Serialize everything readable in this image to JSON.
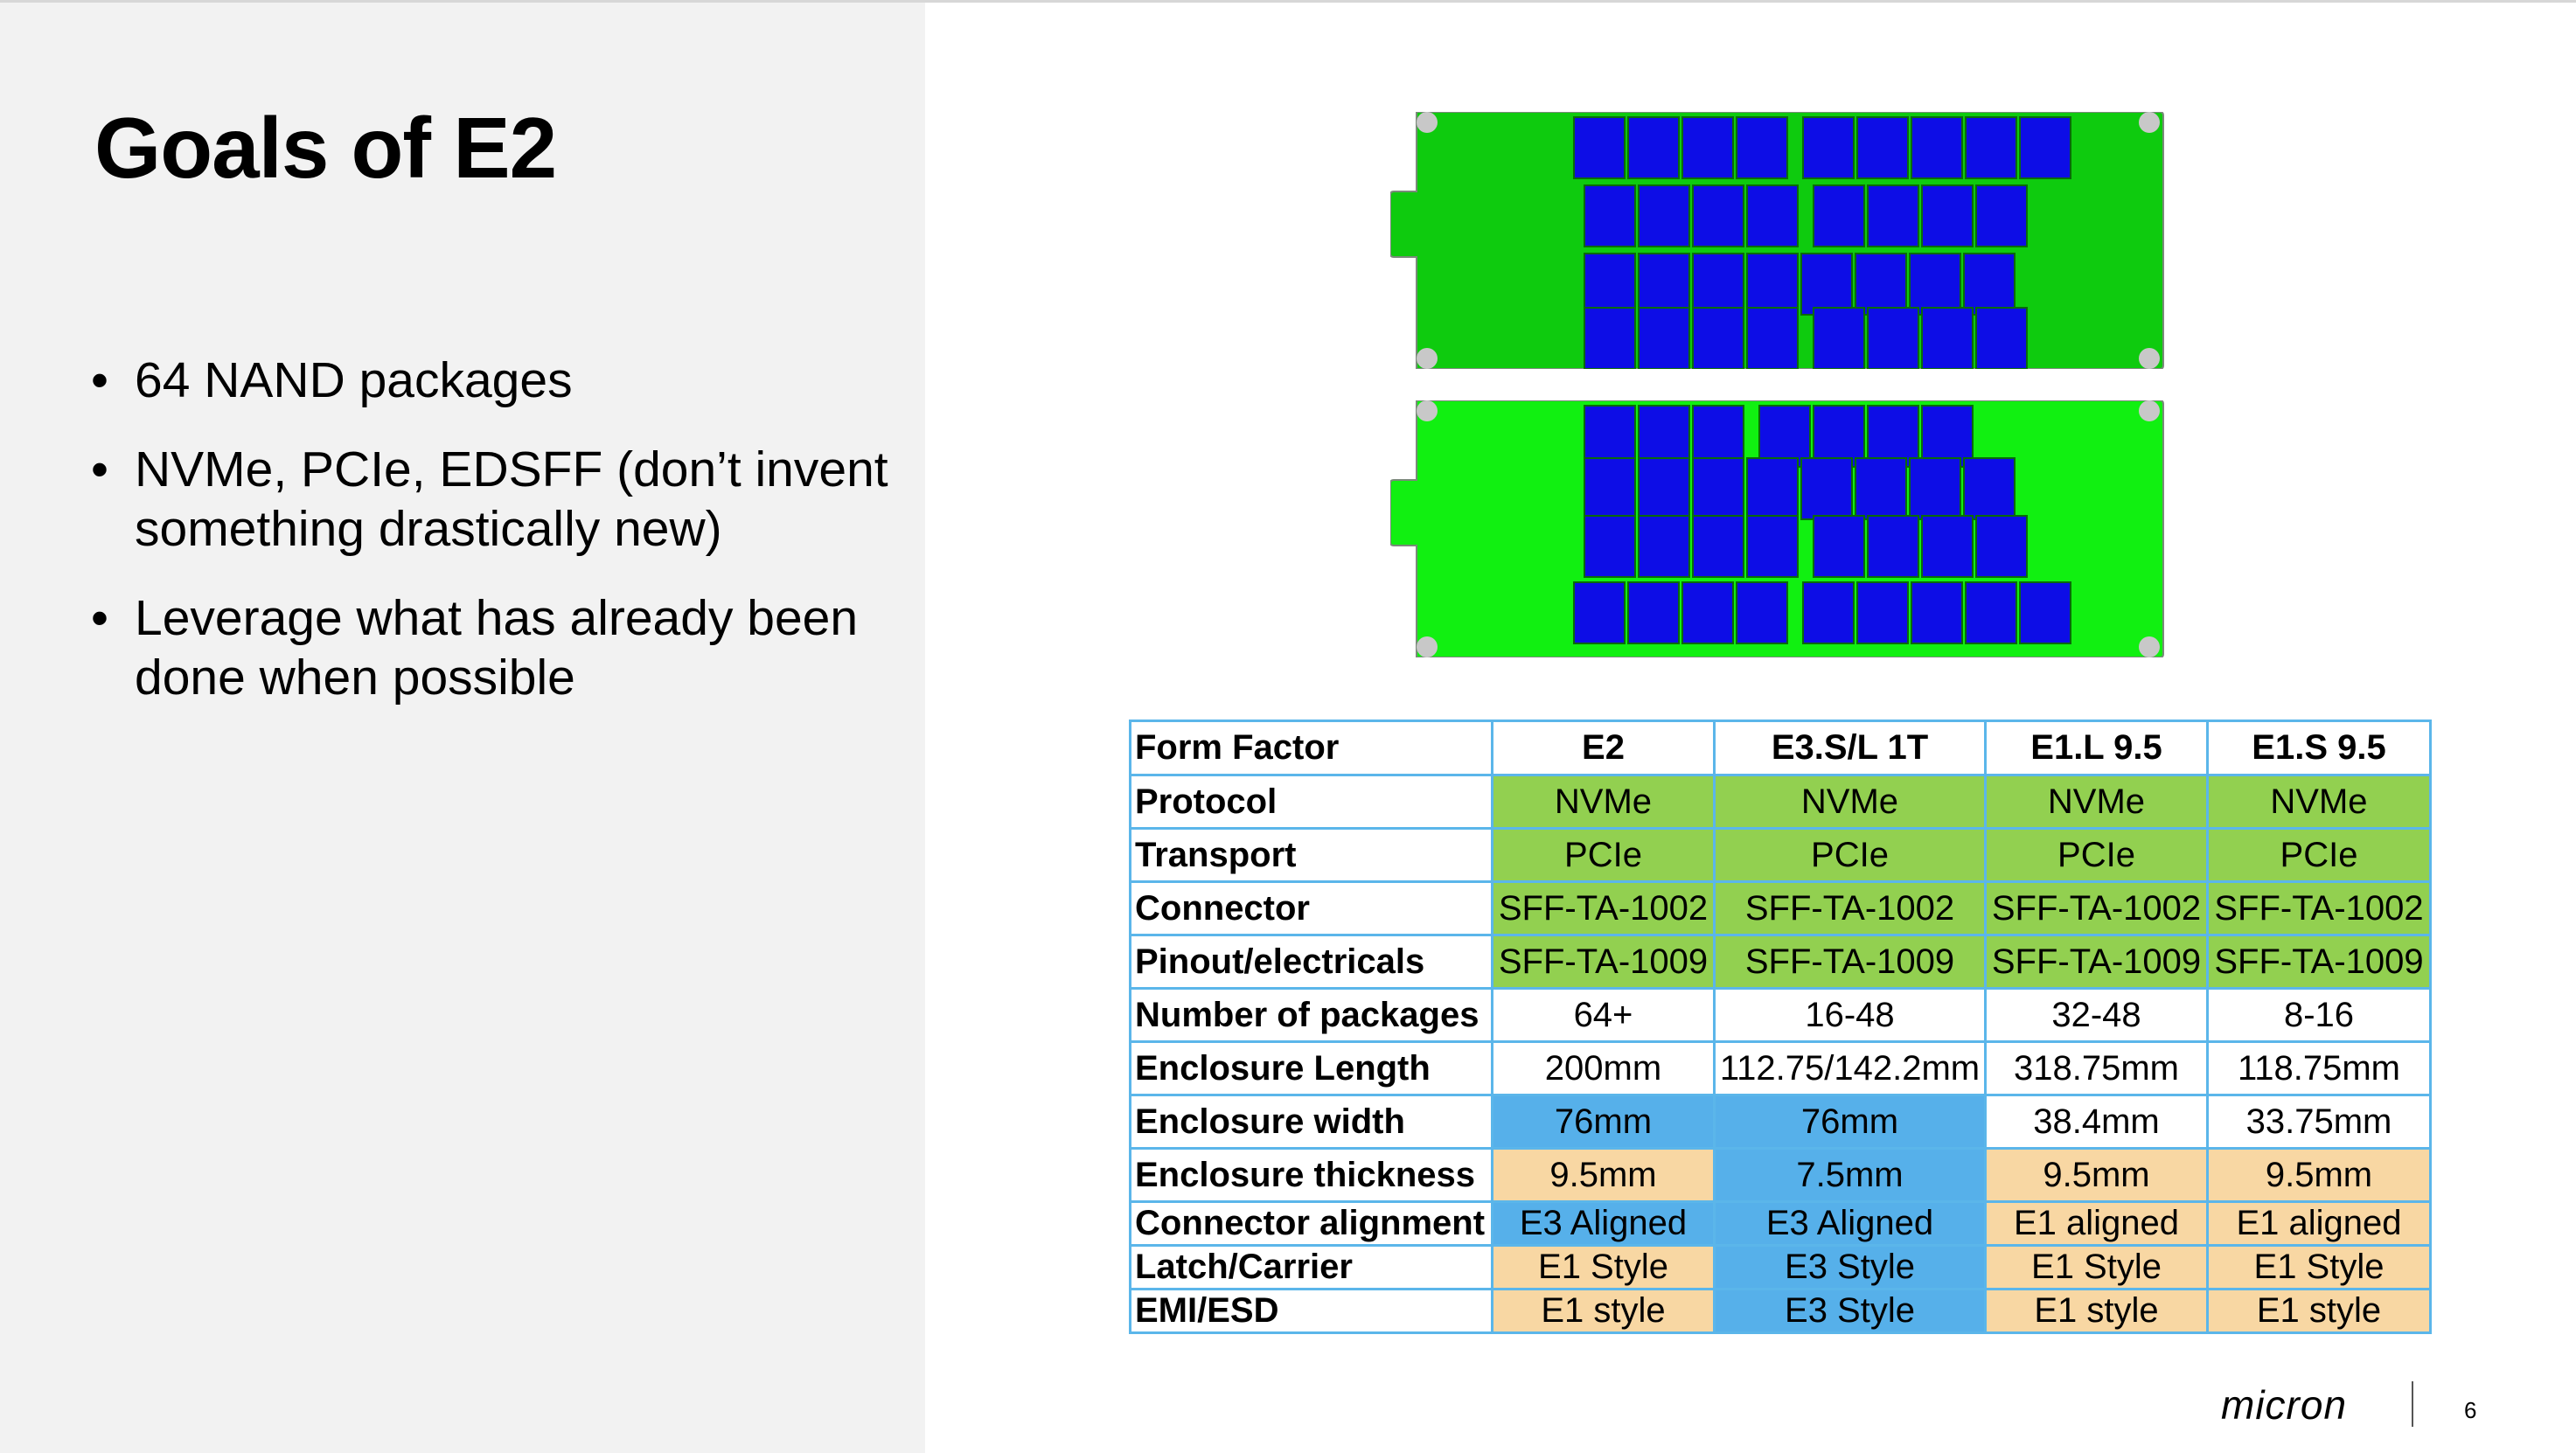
{
  "slide": {
    "title": "Goals of E2",
    "bullets": [
      "64 NAND packages",
      "NVMe, PCIe, EDSFF (don’t invent something drastically new)",
      "Leverage what has already been done when possible"
    ],
    "bullet_symbol": "•",
    "page_number": "6",
    "logo_text": "micron"
  },
  "figure": {
    "board_front_color": "#0ecb0e",
    "board_back_color": "#11f011",
    "package_color": "#0d0de6",
    "board_front_package_rows": [
      [
        4,
        5
      ],
      [
        4,
        4
      ],
      [
        8
      ],
      [
        4,
        4
      ]
    ],
    "board_back_package_rows": [
      [
        3,
        4
      ],
      [
        8
      ],
      [
        4,
        4
      ],
      [
        4,
        5
      ]
    ]
  },
  "table": {
    "columns": [
      "Form Factor",
      "E2",
      "E3.S/L 1T",
      "E1.L 9.5",
      "E1.S 9.5"
    ],
    "rows": [
      {
        "label": "Protocol",
        "cells": [
          "NVMe",
          "NVMe",
          "NVMe",
          "NVMe"
        ],
        "colors": [
          "green",
          "green",
          "green",
          "green"
        ]
      },
      {
        "label": "Transport",
        "cells": [
          "PCIe",
          "PCIe",
          "PCIe",
          "PCIe"
        ],
        "colors": [
          "green",
          "green",
          "green",
          "green"
        ]
      },
      {
        "label": "Connector",
        "cells": [
          "SFF-TA-1002",
          "SFF-TA-1002",
          "SFF-TA-1002",
          "SFF-TA-1002"
        ],
        "colors": [
          "green",
          "green",
          "green",
          "green"
        ]
      },
      {
        "label": "Pinout/electricals",
        "cells": [
          "SFF-TA-1009",
          "SFF-TA-1009",
          "SFF-TA-1009",
          "SFF-TA-1009"
        ],
        "colors": [
          "green",
          "green",
          "green",
          "green"
        ]
      },
      {
        "label": "Number of packages",
        "cells": [
          "64+",
          "16-48",
          "32-48",
          "8-16"
        ],
        "colors": [
          "white",
          "white",
          "white",
          "white"
        ]
      },
      {
        "label": "Enclosure Length",
        "cells": [
          "200mm",
          "112.75/142.2mm",
          "318.75mm",
          "118.75mm"
        ],
        "colors": [
          "white",
          "white",
          "white",
          "white"
        ]
      },
      {
        "label": "Enclosure width",
        "cells": [
          "76mm",
          "76mm",
          "38.4mm",
          "33.75mm"
        ],
        "colors": [
          "blue",
          "blue",
          "white",
          "white"
        ]
      },
      {
        "label": "Enclosure thickness",
        "cells": [
          "9.5mm",
          "7.5mm",
          "9.5mm",
          "9.5mm"
        ],
        "colors": [
          "peach",
          "blue",
          "peach",
          "peach"
        ]
      },
      {
        "label": "Connector alignment",
        "cells": [
          "E3 Aligned",
          "E3 Aligned",
          "E1 aligned",
          "E1 aligned"
        ],
        "colors": [
          "blue",
          "blue",
          "peach",
          "peach"
        ]
      },
      {
        "label": "Latch/Carrier",
        "cells": [
          "E1 Style",
          "E3 Style",
          "E1 Style",
          "E1 Style"
        ],
        "colors": [
          "peach",
          "blue",
          "peach",
          "peach"
        ]
      },
      {
        "label": "EMI/ESD",
        "cells": [
          "E1 style",
          "E3 Style",
          "E1 style",
          "E1 style"
        ],
        "colors": [
          "peach",
          "blue",
          "peach",
          "peach"
        ]
      }
    ],
    "colors": {
      "green": "#92d050",
      "blue": "#56b0ea",
      "peach": "#f8d7a3",
      "white": "#ffffff",
      "border": "#5bb6ea"
    }
  }
}
